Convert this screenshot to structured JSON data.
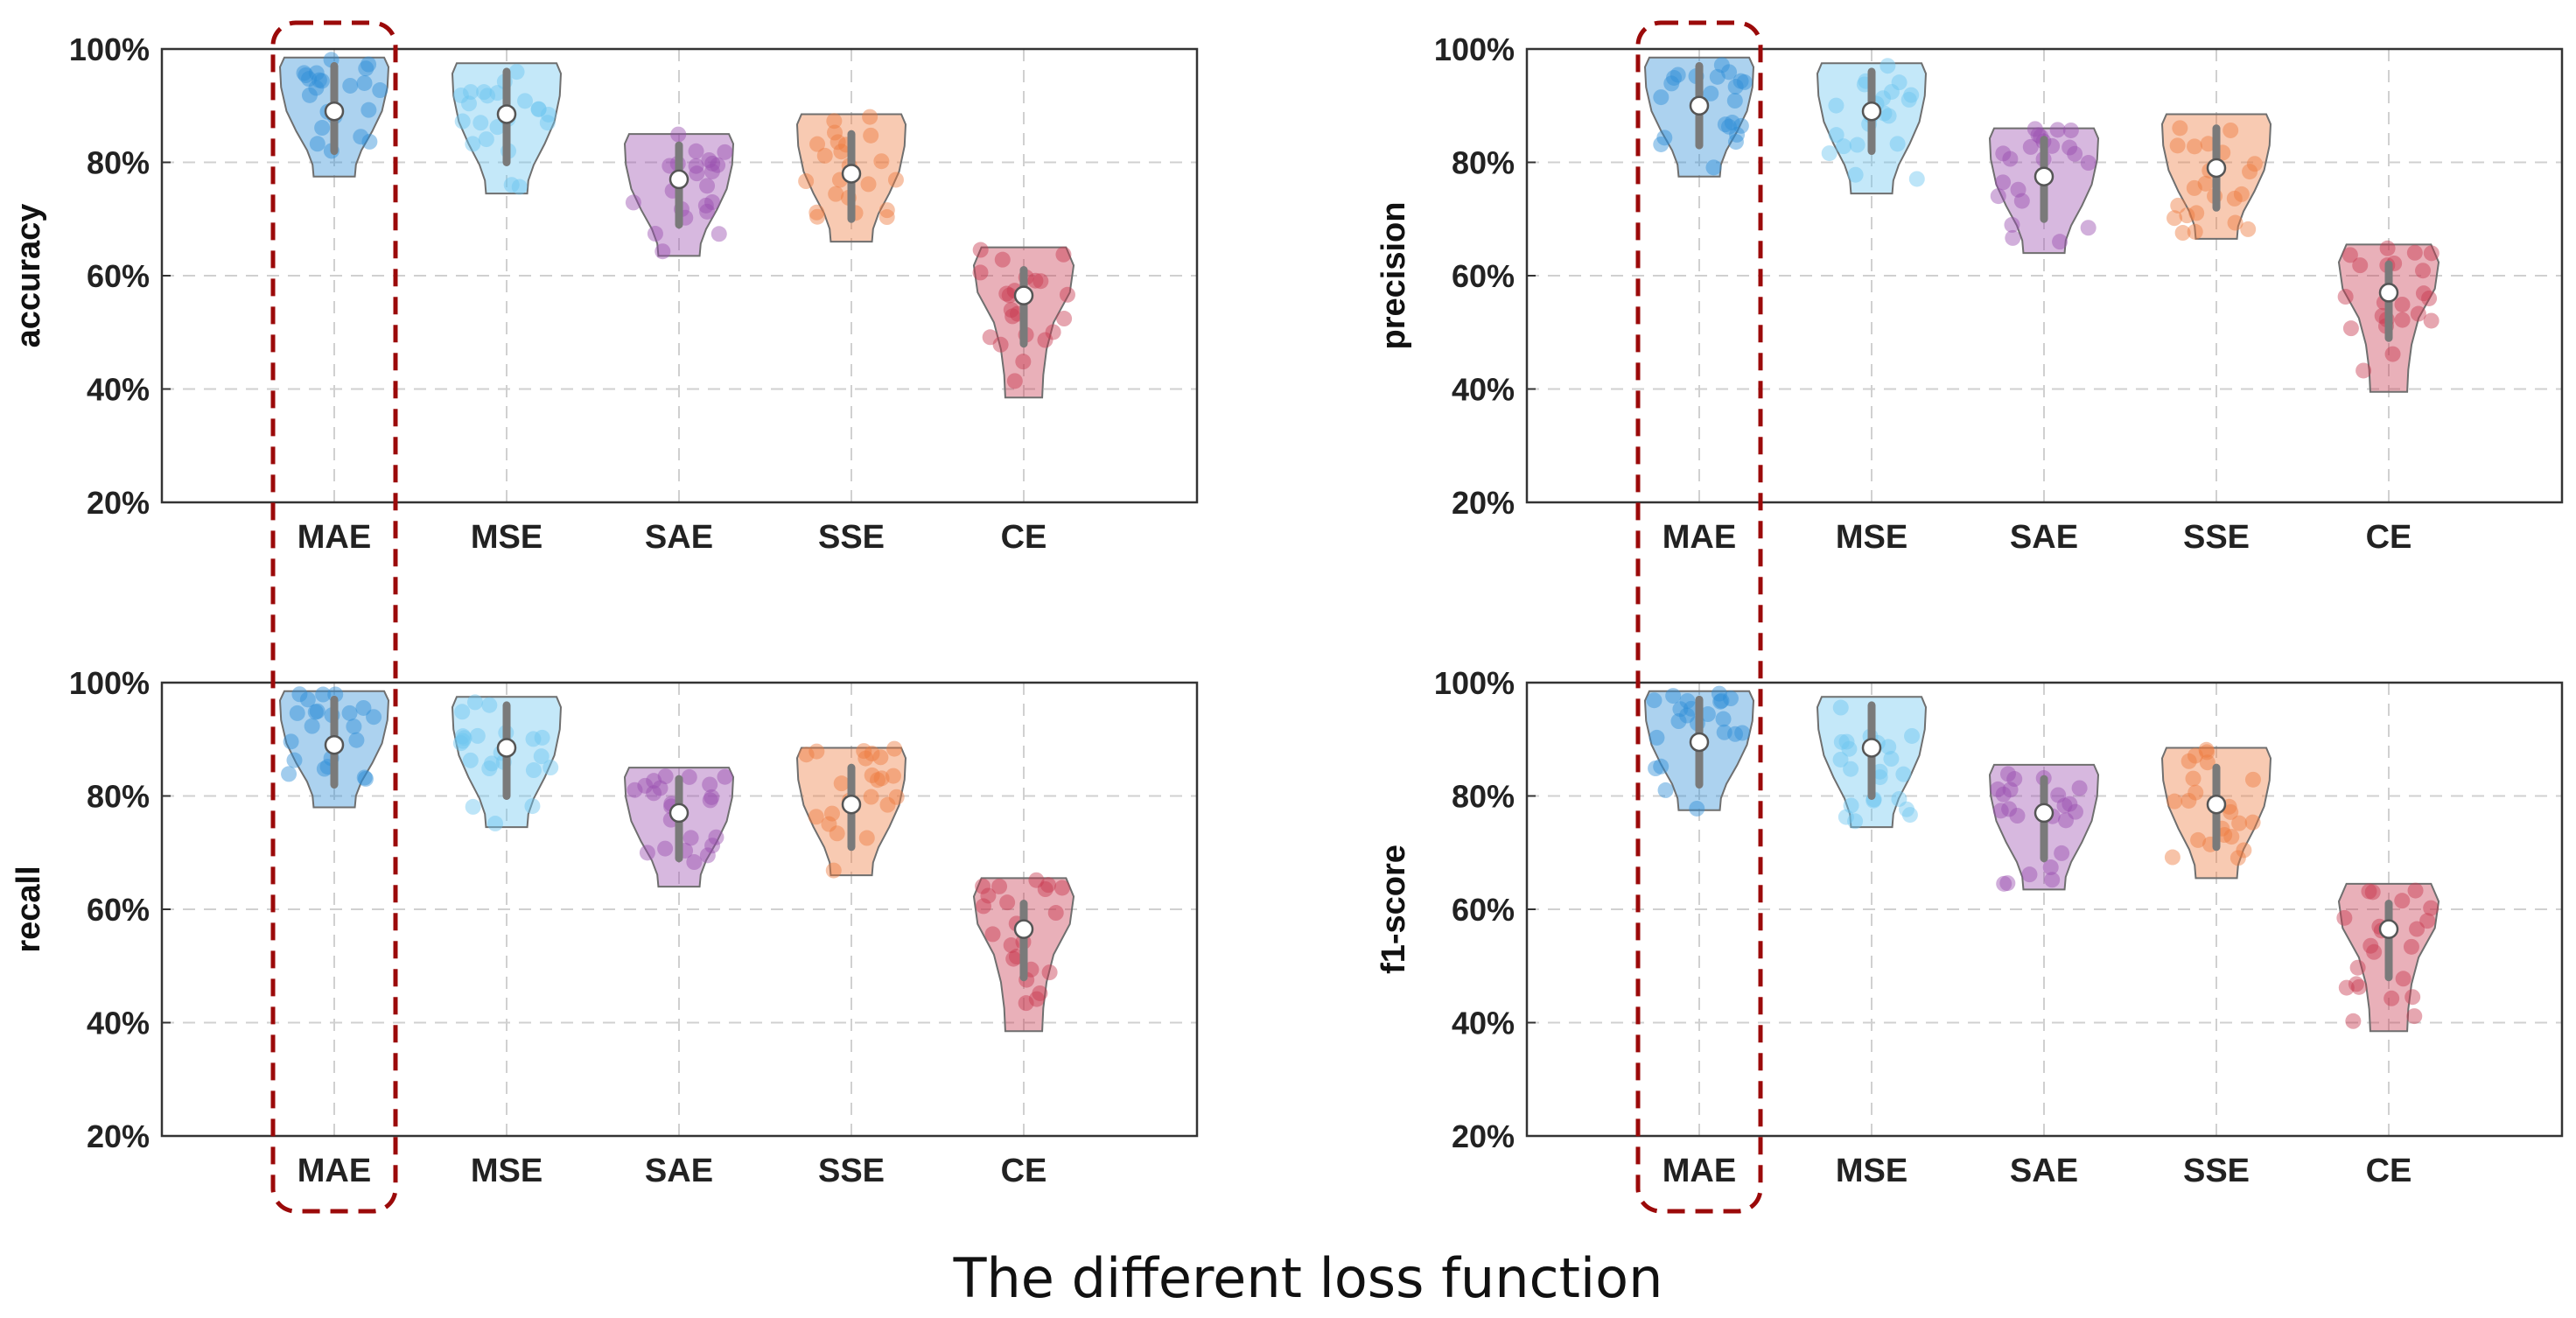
{
  "title": "The different loss function",
  "colors": {
    "MAE": "#2f8ed6",
    "MSE": "#6cc6ef",
    "SAE": "#9a4eb0",
    "SSE": "#ee7a3e",
    "CE": "#c8394f",
    "highlight": "#9b0a0a",
    "grid": "#d0d0d0",
    "box": "#7a7a7a"
  },
  "highlight_category": "MAE",
  "chart_data": [
    {
      "type": "violin",
      "ylabel": "accuracy",
      "ylim": [
        0.2,
        1.0
      ],
      "yticks": [
        0.2,
        0.4,
        0.6,
        0.8,
        1.0
      ],
      "ytick_labels": [
        "20%",
        "40%",
        "60%",
        "80%",
        "100%"
      ],
      "categories": [
        "MAE",
        "MSE",
        "SAE",
        "SSE",
        "CE"
      ],
      "series": [
        {
          "name": "MAE",
          "min": 0.775,
          "max": 0.985,
          "median": 0.89,
          "q1": 0.82,
          "q3": 0.97
        },
        {
          "name": "MSE",
          "min": 0.745,
          "max": 0.975,
          "median": 0.885,
          "q1": 0.8,
          "q3": 0.96
        },
        {
          "name": "SAE",
          "min": 0.635,
          "max": 0.85,
          "median": 0.77,
          "q1": 0.69,
          "q3": 0.83
        },
        {
          "name": "SSE",
          "min": 0.66,
          "max": 0.885,
          "median": 0.78,
          "q1": 0.7,
          "q3": 0.85
        },
        {
          "name": "CE",
          "min": 0.385,
          "max": 0.65,
          "median": 0.565,
          "q1": 0.48,
          "q3": 0.61
        }
      ]
    },
    {
      "type": "violin",
      "ylabel": "precision",
      "ylim": [
        0.2,
        1.0
      ],
      "yticks": [
        0.2,
        0.4,
        0.6,
        0.8,
        1.0
      ],
      "ytick_labels": [
        "20%",
        "40%",
        "60%",
        "80%",
        "100%"
      ],
      "categories": [
        "MAE",
        "MSE",
        "SAE",
        "SSE",
        "CE"
      ],
      "series": [
        {
          "name": "MAE",
          "min": 0.775,
          "max": 0.985,
          "median": 0.9,
          "q1": 0.83,
          "q3": 0.97
        },
        {
          "name": "MSE",
          "min": 0.745,
          "max": 0.975,
          "median": 0.89,
          "q1": 0.82,
          "q3": 0.96
        },
        {
          "name": "SAE",
          "min": 0.64,
          "max": 0.86,
          "median": 0.775,
          "q1": 0.7,
          "q3": 0.84
        },
        {
          "name": "SSE",
          "min": 0.665,
          "max": 0.885,
          "median": 0.79,
          "q1": 0.72,
          "q3": 0.86
        },
        {
          "name": "CE",
          "min": 0.395,
          "max": 0.655,
          "median": 0.57,
          "q1": 0.49,
          "q3": 0.62
        }
      ]
    },
    {
      "type": "violin",
      "ylabel": "recall",
      "ylim": [
        0.2,
        1.0
      ],
      "yticks": [
        0.2,
        0.4,
        0.6,
        0.8,
        1.0
      ],
      "ytick_labels": [
        "20%",
        "40%",
        "60%",
        "80%",
        "100%"
      ],
      "categories": [
        "MAE",
        "MSE",
        "SAE",
        "SSE",
        "CE"
      ],
      "series": [
        {
          "name": "MAE",
          "min": 0.78,
          "max": 0.985,
          "median": 0.89,
          "q1": 0.82,
          "q3": 0.97
        },
        {
          "name": "MSE",
          "min": 0.745,
          "max": 0.975,
          "median": 0.885,
          "q1": 0.8,
          "q3": 0.96
        },
        {
          "name": "SAE",
          "min": 0.64,
          "max": 0.85,
          "median": 0.77,
          "q1": 0.69,
          "q3": 0.83
        },
        {
          "name": "SSE",
          "min": 0.66,
          "max": 0.885,
          "median": 0.785,
          "q1": 0.71,
          "q3": 0.85
        },
        {
          "name": "CE",
          "min": 0.385,
          "max": 0.655,
          "median": 0.565,
          "q1": 0.48,
          "q3": 0.61
        }
      ]
    },
    {
      "type": "violin",
      "ylabel": "f1-score",
      "ylim": [
        0.2,
        1.0
      ],
      "yticks": [
        0.2,
        0.4,
        0.6,
        0.8,
        1.0
      ],
      "ytick_labels": [
        "20%",
        "40%",
        "60%",
        "80%",
        "100%"
      ],
      "categories": [
        "MAE",
        "MSE",
        "SAE",
        "SSE",
        "CE"
      ],
      "series": [
        {
          "name": "MAE",
          "min": 0.775,
          "max": 0.985,
          "median": 0.895,
          "q1": 0.82,
          "q3": 0.97
        },
        {
          "name": "MSE",
          "min": 0.745,
          "max": 0.975,
          "median": 0.885,
          "q1": 0.8,
          "q3": 0.96
        },
        {
          "name": "SAE",
          "min": 0.635,
          "max": 0.855,
          "median": 0.77,
          "q1": 0.69,
          "q3": 0.83
        },
        {
          "name": "SSE",
          "min": 0.655,
          "max": 0.885,
          "median": 0.785,
          "q1": 0.71,
          "q3": 0.85
        },
        {
          "name": "CE",
          "min": 0.385,
          "max": 0.645,
          "median": 0.565,
          "q1": 0.48,
          "q3": 0.61
        }
      ]
    }
  ]
}
